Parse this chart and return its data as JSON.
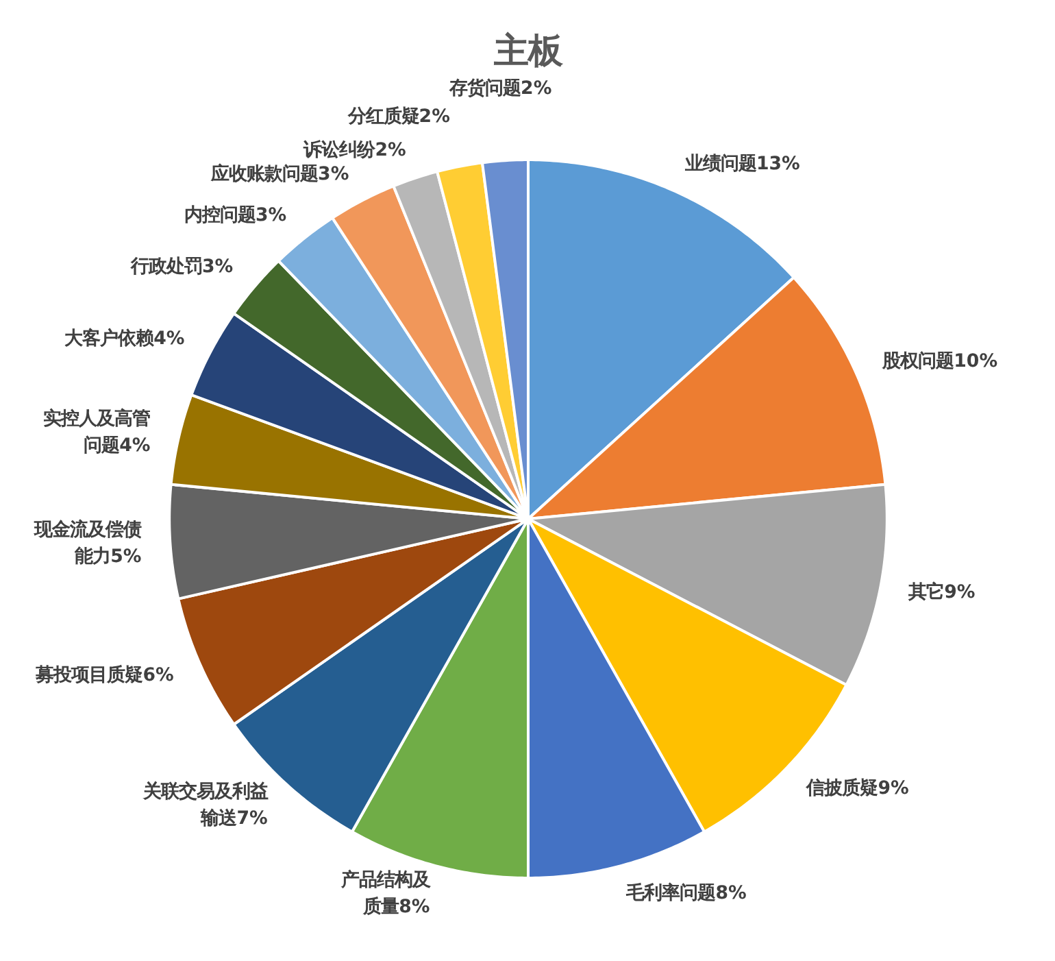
{
  "chart_data": {
    "type": "pie",
    "title": "主板",
    "categories": [
      "业绩问题",
      "股权问题",
      "其它",
      "信披质疑",
      "毛利率问题",
      "产品结构及质量",
      "关联交易及利益输送",
      "募投项目质疑",
      "现金流及偿债能力",
      "实控人及高管问题",
      "大客户依赖",
      "行政处罚",
      "内控问题",
      "应收账款问题",
      "诉讼纠纷",
      "分红质疑",
      "存货问题"
    ],
    "values": [
      13,
      10,
      9,
      9,
      8,
      8,
      7,
      6,
      5,
      4,
      4,
      3,
      3,
      3,
      2,
      2,
      2
    ],
    "value_labels": [
      "13%",
      "10%",
      "9%",
      "9%",
      "8%",
      "8%",
      "7%",
      "6%",
      "5%",
      "4%",
      "4%",
      "3%",
      "3%",
      "3%",
      "2%",
      "2%",
      "2%"
    ],
    "colors": [
      "#5b9bd5",
      "#ed7d31",
      "#a5a5a5",
      "#ffc000",
      "#4472c4",
      "#70ad47",
      "#255e91",
      "#9e480e",
      "#636363",
      "#997300",
      "#264478",
      "#43682b",
      "#7cafdd",
      "#f1975a",
      "#b7b7b7",
      "#ffcd33",
      "#698ed0"
    ]
  }
}
